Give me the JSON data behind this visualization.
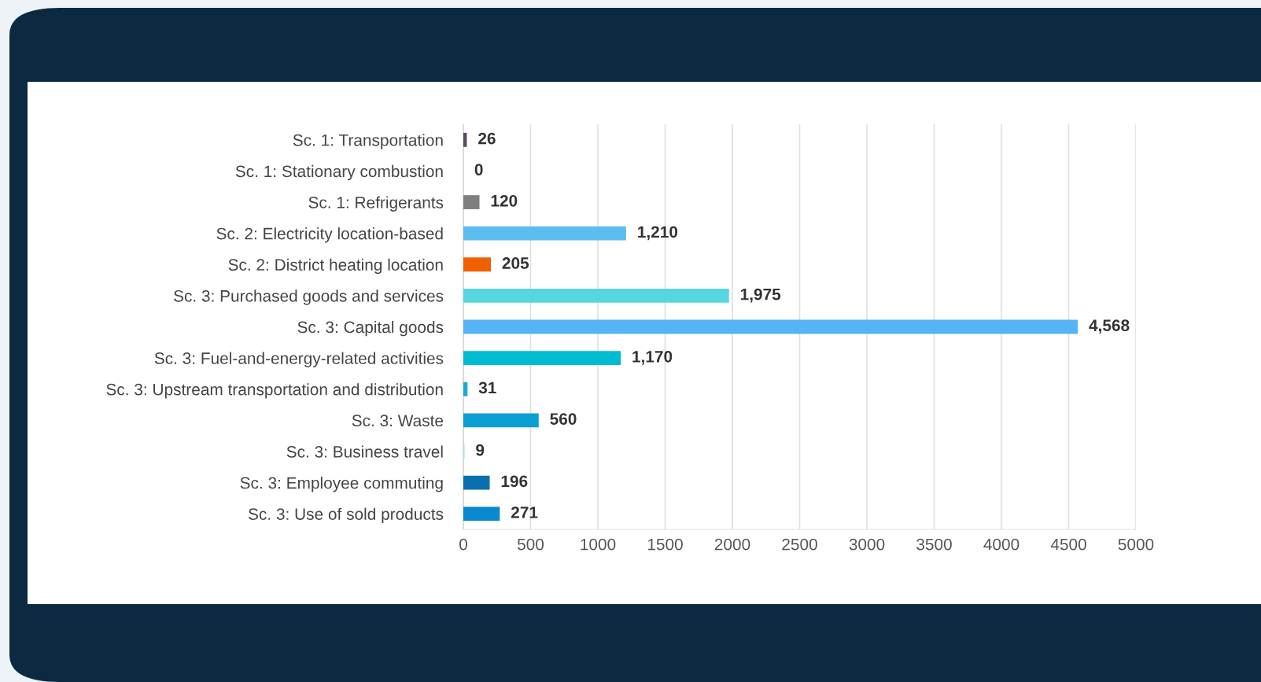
{
  "chart_data": {
    "type": "bar",
    "orientation": "horizontal",
    "categories": [
      "Sc. 1: Transportation",
      "Sc. 1: Stationary combustion",
      "Sc. 1: Refrigerants",
      "Sc. 2: Electricity location-based",
      "Sc. 2: District heating location",
      "Sc. 3: Purchased goods and services",
      "Sc. 3: Capital goods",
      "Sc. 3: Fuel-and-energy-related activities",
      "Sc. 3: Upstream transportation and distribution",
      "Sc. 3: Waste",
      "Sc. 3: Business travel",
      "Sc. 3: Employee commuting",
      "Sc. 3: Use of sold products"
    ],
    "values": [
      26,
      0,
      120,
      1210,
      205,
      1975,
      4568,
      1170,
      31,
      560,
      9,
      196,
      271
    ],
    "colors": [
      "#5a4a5e",
      "#7f7f80",
      "#7f7f80",
      "#5bbcf0",
      "#f06000",
      "#55d6e0",
      "#55b4f5",
      "#00bcd0",
      "#1aa8d8",
      "#0a9fd0",
      "#9fe0f0",
      "#0a6fb0",
      "#0a88d0"
    ],
    "xlim": [
      0,
      5000
    ],
    "xticks": [
      0,
      500,
      1000,
      1500,
      2000,
      2500,
      3000,
      3500,
      4000,
      4500,
      5000
    ],
    "value_labels": [
      "26",
      "0",
      "120",
      "1,210",
      "205",
      "1,975",
      "4,568",
      "1,170",
      "31",
      "560",
      "9",
      "196",
      "271"
    ],
    "grid": "x"
  }
}
